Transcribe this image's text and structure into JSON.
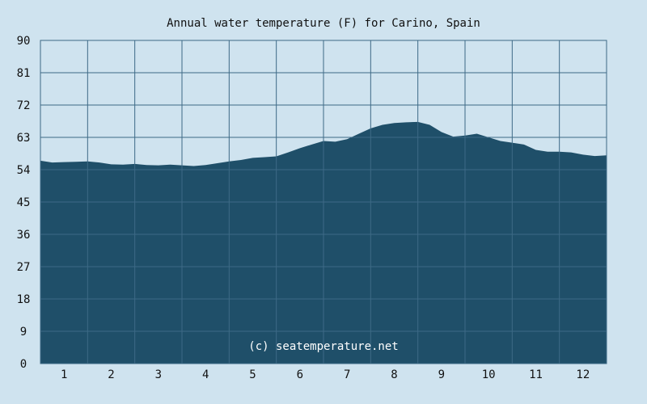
{
  "chart_data": {
    "type": "area",
    "title": "Annual water temperature (F) for Carino, Spain",
    "xlabel": "",
    "ylabel": "",
    "x_tick_labels": [
      "1",
      "2",
      "3",
      "4",
      "5",
      "6",
      "7",
      "8",
      "9",
      "10",
      "11",
      "12"
    ],
    "y_tick_labels": [
      "0",
      "9",
      "18",
      "27",
      "36",
      "45",
      "54",
      "63",
      "72",
      "81",
      "90"
    ],
    "ylim": [
      0,
      90
    ],
    "xlim": [
      0.5,
      12.5
    ],
    "grid": true,
    "series": [
      {
        "x": [
          0.5,
          0.75,
          1.0,
          1.25,
          1.5,
          1.75,
          2.0,
          2.25,
          2.5,
          2.75,
          3.0,
          3.25,
          3.5,
          3.75,
          4.0,
          4.25,
          4.5,
          4.75,
          5.0,
          5.25,
          5.5,
          5.75,
          6.0,
          6.25,
          6.5,
          6.75,
          7.0,
          7.25,
          7.5,
          7.75,
          8.0,
          8.25,
          8.5,
          8.75,
          9.0,
          9.25,
          9.5,
          9.75,
          10.0,
          10.25,
          10.5,
          10.75,
          11.0,
          11.25,
          11.5,
          11.75,
          12.0,
          12.25,
          12.5
        ],
        "values": [
          56.5,
          56.0,
          56.1,
          56.2,
          56.3,
          56.0,
          55.5,
          55.4,
          55.6,
          55.3,
          55.2,
          55.4,
          55.2,
          55.0,
          55.3,
          55.8,
          56.3,
          56.7,
          57.3,
          57.5,
          57.7,
          58.8,
          60.0,
          61.0,
          62.0,
          61.8,
          62.5,
          64.0,
          65.5,
          66.5,
          67.0,
          67.2,
          67.3,
          66.5,
          64.5,
          63.2,
          63.5,
          64.0,
          63.0,
          62.0,
          61.5,
          61.0,
          59.5,
          59.0,
          59.0,
          58.8,
          58.2,
          57.8,
          58.0
        ]
      }
    ],
    "watermark": "(c) seatemperature.net",
    "colors": {
      "background": "#cfe3ef",
      "area_fill": "#1f4f69",
      "grid": "#3d6a86",
      "text": "#111111",
      "watermark": "#ffffff"
    }
  }
}
